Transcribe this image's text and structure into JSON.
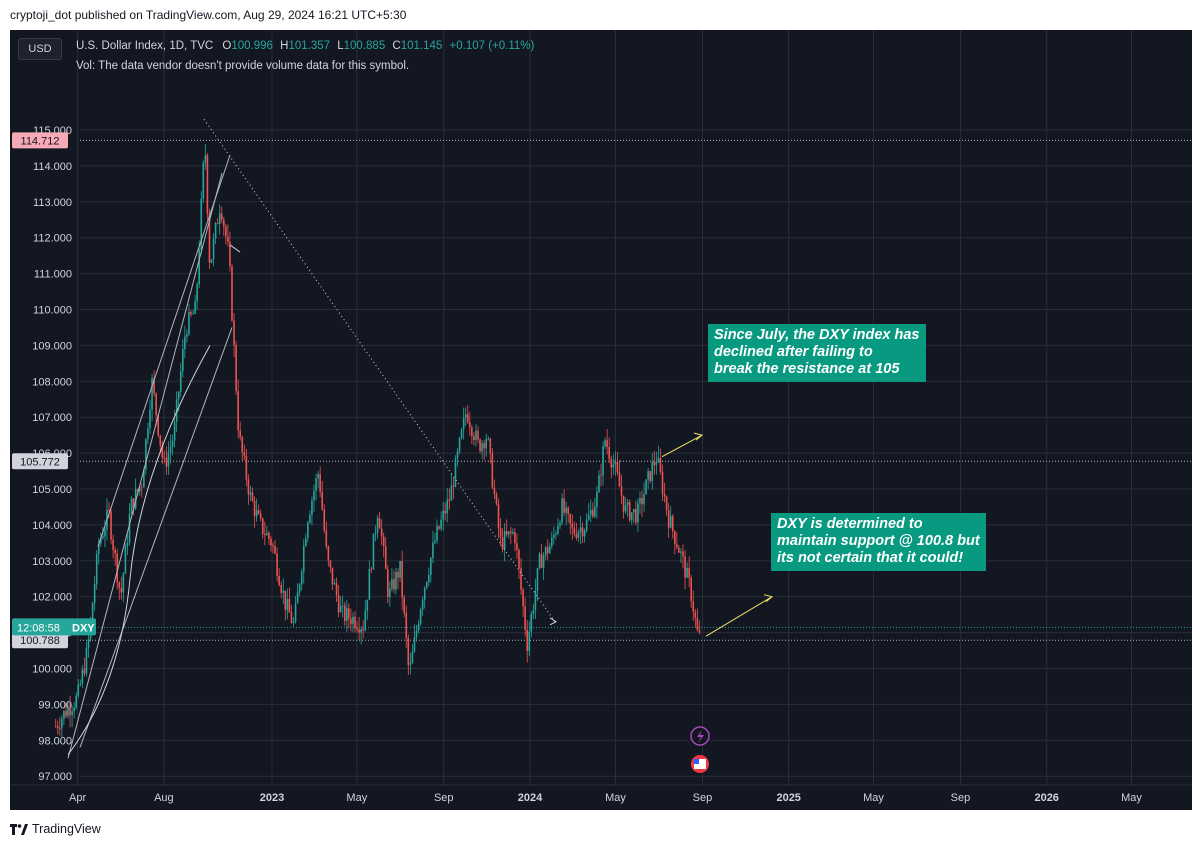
{
  "header": {
    "published": "cryptoji_dot published on TradingView.com, Aug 29, 2024 16:21 UTC+5:30"
  },
  "toolbar": {
    "currency_button": "USD"
  },
  "legend": {
    "symbol": "U.S. Dollar Index, 1D, TVC",
    "o_label": "O",
    "o_value": "100.996",
    "h_label": "H",
    "h_value": "101.357",
    "l_label": "L",
    "l_value": "100.885",
    "c_label": "C",
    "c_value": "101.145",
    "change": "+0.107 (+0.11%)",
    "volume_note": "Vol: The data vendor doesn't provide volume data for this symbol."
  },
  "annotations": {
    "resistance": [
      "Since July, the DXY index has",
      "declined after failing to",
      "break the resistance at 105"
    ],
    "support": [
      "DXY is determined to",
      "maintain support @ 100.8 but",
      "its not certain that it could!"
    ]
  },
  "colors": {
    "background": "#131722",
    "up": "#26a69a",
    "down": "#ef5350",
    "note_bg": "#089981",
    "grid": "#2a2e39",
    "arrow": "#f5e663"
  },
  "footer": {
    "brand": "TradingView"
  },
  "chart_data": {
    "type": "candlestick",
    "symbol": "DXY",
    "y_ticks": [
      "115.000",
      "114.000",
      "113.000",
      "112.000",
      "111.000",
      "110.000",
      "109.000",
      "108.000",
      "107.000",
      "106.000",
      "105.000",
      "104.000",
      "103.000",
      "102.000",
      "101.000",
      "100.000",
      "99.000",
      "98.000",
      "97.000"
    ],
    "x_ticks": [
      "Apr",
      "Aug",
      "2023",
      "May",
      "Sep",
      "2024",
      "May",
      "Sep",
      "2025",
      "May",
      "Sep",
      "2026",
      "May"
    ],
    "ylim": [
      96.2,
      116.3
    ],
    "price_labels": {
      "high": {
        "value": "114.712",
        "color": "#f7a9b6"
      },
      "level": {
        "value": "105.772",
        "color": "#d1d4dc"
      },
      "current": {
        "value": "DXY",
        "timer": "12:08:58",
        "color": "#26a69a"
      },
      "support": {
        "value": "100.788",
        "color": "#d1d4dc"
      }
    },
    "series_close": [
      [
        "2022-03-01",
        98.4
      ],
      [
        "2022-03-15",
        98.8
      ],
      [
        "2022-04-01",
        99.2
      ],
      [
        "2022-04-15",
        100.5
      ],
      [
        "2022-05-01",
        103.5
      ],
      [
        "2022-05-15",
        104.3
      ],
      [
        "2022-06-01",
        102.0
      ],
      [
        "2022-06-15",
        104.5
      ],
      [
        "2022-07-01",
        105.2
      ],
      [
        "2022-07-15",
        108.0
      ],
      [
        "2022-08-01",
        105.6
      ],
      [
        "2022-08-15",
        106.5
      ],
      [
        "2022-09-01",
        109.5
      ],
      [
        "2022-09-15",
        110.0
      ],
      [
        "2022-09-28",
        114.7
      ],
      [
        "2022-10-05",
        111.2
      ],
      [
        "2022-10-20",
        113.0
      ],
      [
        "2022-11-01",
        111.5
      ],
      [
        "2022-11-15",
        106.5
      ],
      [
        "2022-12-01",
        104.8
      ],
      [
        "2022-12-15",
        104.0
      ],
      [
        "2023-01-01",
        103.5
      ],
      [
        "2023-01-20",
        101.8
      ],
      [
        "2023-02-01",
        101.2
      ],
      [
        "2023-02-20",
        104.2
      ],
      [
        "2023-03-08",
        105.5
      ],
      [
        "2023-03-20",
        103.0
      ],
      [
        "2023-04-10",
        101.5
      ],
      [
        "2023-04-25",
        101.4
      ],
      [
        "2023-05-10",
        101.2
      ],
      [
        "2023-05-31",
        104.5
      ],
      [
        "2023-06-15",
        102.0
      ],
      [
        "2023-07-01",
        102.8
      ],
      [
        "2023-07-14",
        99.8
      ],
      [
        "2023-08-01",
        102.0
      ],
      [
        "2023-08-20",
        103.6
      ],
      [
        "2023-09-10",
        104.8
      ],
      [
        "2023-10-03",
        107.2
      ],
      [
        "2023-10-20",
        106.2
      ],
      [
        "2023-11-01",
        106.5
      ],
      [
        "2023-11-20",
        103.5
      ],
      [
        "2023-12-10",
        103.8
      ],
      [
        "2023-12-28",
        100.7
      ],
      [
        "2024-01-15",
        103.0
      ],
      [
        "2024-02-01",
        103.5
      ],
      [
        "2024-02-15",
        104.5
      ],
      [
        "2024-03-01",
        103.8
      ],
      [
        "2024-03-20",
        104.0
      ],
      [
        "2024-04-05",
        104.8
      ],
      [
        "2024-04-16",
        106.4
      ],
      [
        "2024-05-01",
        105.5
      ],
      [
        "2024-05-15",
        104.4
      ],
      [
        "2024-06-01",
        104.3
      ],
      [
        "2024-06-20",
        105.5
      ],
      [
        "2024-06-28",
        105.9
      ],
      [
        "2024-07-15",
        104.2
      ],
      [
        "2024-08-01",
        103.2
      ],
      [
        "2024-08-15",
        102.2
      ],
      [
        "2024-08-27",
        100.7
      ],
      [
        "2024-08-29",
        101.15
      ]
    ]
  }
}
